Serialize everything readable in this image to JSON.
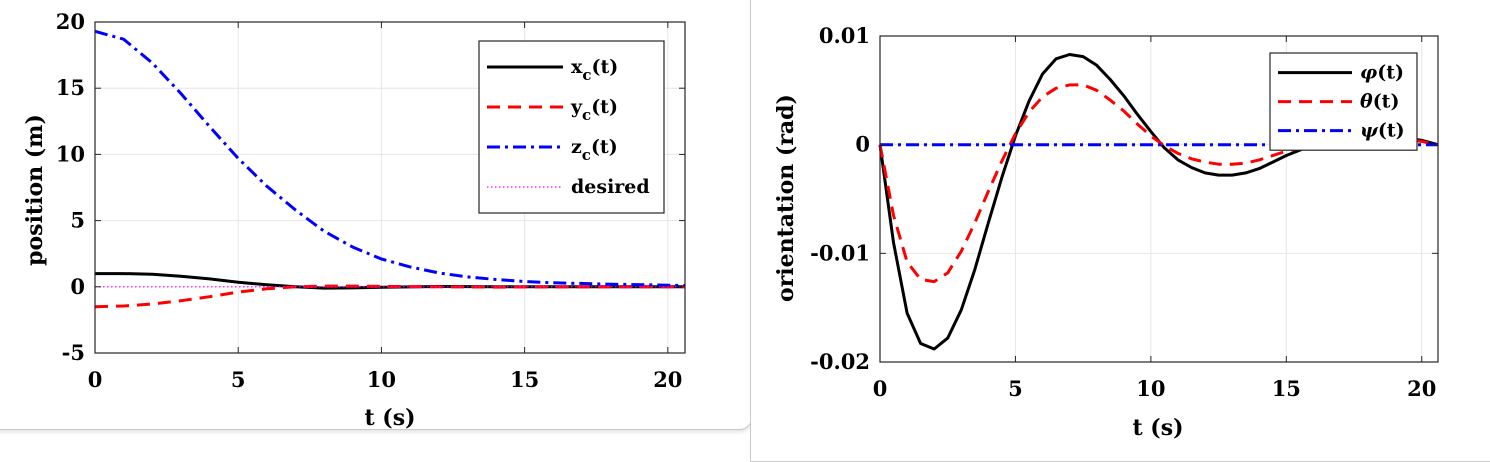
{
  "colors": {
    "black": "#000000",
    "red": "#ff0000",
    "blue": "#0000ff",
    "magenta": "#ff00ff",
    "grid": "#e6e6e6"
  },
  "chart_data": [
    {
      "type": "line",
      "xlabel": "t (s)",
      "ylabel": "position (m)",
      "xlim": [
        0,
        20.6
      ],
      "ylim": [
        -5,
        20
      ],
      "xticks": [
        0,
        5,
        10,
        15,
        20
      ],
      "xtick_labels": [
        "0",
        "5",
        "10",
        "15",
        "20"
      ],
      "yticks": [
        -5,
        0,
        5,
        10,
        15,
        20
      ],
      "ytick_labels": [
        "-5",
        "0",
        "5",
        "10",
        "15",
        "20"
      ],
      "grid": true,
      "legend_position": "top-right",
      "legend": [
        {
          "base": "x",
          "sub": "c",
          "suffix": "(t)",
          "color": "#000000",
          "style": "solid"
        },
        {
          "base": "y",
          "sub": "c",
          "suffix": "(t)",
          "color": "#ff0000",
          "style": "dashed"
        },
        {
          "base": "z",
          "sub": "c",
          "suffix": "(t)",
          "color": "#0000ff",
          "style": "dashdot"
        },
        {
          "base": "desired",
          "sub": "",
          "suffix": "",
          "color": "#ff00ff",
          "style": "dotted"
        }
      ],
      "series": [
        {
          "name": "x_c(t)",
          "color": "#000000",
          "style": "solid",
          "x": [
            0,
            1,
            2,
            3,
            4,
            5,
            6,
            7,
            8,
            9,
            10,
            12,
            14,
            16,
            18,
            20,
            20.6
          ],
          "y": [
            1.0,
            1.0,
            0.95,
            0.8,
            0.6,
            0.35,
            0.15,
            0.0,
            -0.1,
            -0.08,
            -0.03,
            0.02,
            0.01,
            0.0,
            0.0,
            0.0,
            0.0
          ]
        },
        {
          "name": "y_c(t)",
          "color": "#ff0000",
          "style": "dashed",
          "x": [
            0,
            1,
            2,
            3,
            4,
            5,
            6,
            7,
            8,
            9,
            10,
            12,
            14,
            16,
            18,
            20,
            20.6
          ],
          "y": [
            -1.5,
            -1.45,
            -1.3,
            -1.05,
            -0.75,
            -0.4,
            -0.15,
            0.0,
            0.05,
            0.05,
            0.03,
            0.0,
            -0.02,
            -0.01,
            0.0,
            0.0,
            0.0
          ]
        },
        {
          "name": "z_c(t)",
          "color": "#0000ff",
          "style": "dashdot",
          "x": [
            0,
            1,
            2,
            3,
            4,
            5,
            6,
            7,
            8,
            9,
            10,
            11,
            12,
            13,
            14,
            15,
            16,
            18,
            20,
            20.6
          ],
          "y": [
            19.3,
            18.7,
            16.9,
            14.6,
            12.1,
            9.7,
            7.6,
            5.8,
            4.2,
            3.0,
            2.1,
            1.5,
            1.05,
            0.75,
            0.55,
            0.4,
            0.3,
            0.2,
            0.12,
            0.1
          ]
        },
        {
          "name": "desired",
          "color": "#ff00ff",
          "style": "dotted",
          "x": [
            0,
            20.6
          ],
          "y": [
            0,
            0
          ]
        }
      ]
    },
    {
      "type": "line",
      "xlabel": "t (s)",
      "ylabel": "orientation (rad)",
      "xlim": [
        0,
        20.6
      ],
      "ylim": [
        -0.02,
        0.01
      ],
      "xticks": [
        0,
        5,
        10,
        15,
        20
      ],
      "xtick_labels": [
        "0",
        "5",
        "10",
        "15",
        "20"
      ],
      "yticks": [
        -0.02,
        -0.01,
        0,
        0.01
      ],
      "ytick_labels": [
        "-0.02",
        "-0.01",
        "0",
        "0.01"
      ],
      "grid": true,
      "legend_position": "top-right",
      "legend": [
        {
          "base": "φ",
          "sub": "",
          "suffix": "(t)",
          "color": "#000000",
          "style": "solid"
        },
        {
          "base": "θ",
          "sub": "",
          "suffix": "(t)",
          "color": "#ff0000",
          "style": "dashed"
        },
        {
          "base": "ψ",
          "sub": "",
          "suffix": "(t)",
          "color": "#0000ff",
          "style": "dashdot"
        }
      ],
      "series": [
        {
          "name": "φ(t)",
          "color": "#000000",
          "style": "solid",
          "x": [
            0,
            0.5,
            1,
            1.5,
            2,
            2.5,
            3,
            3.5,
            4,
            4.5,
            5,
            5.5,
            6,
            6.5,
            7,
            7.5,
            8,
            8.5,
            9,
            9.5,
            10,
            10.5,
            11,
            11.5,
            12,
            12.5,
            13,
            13.5,
            14,
            14.5,
            15,
            15.5,
            16,
            17,
            18,
            19,
            20,
            20.6
          ],
          "y": [
            0,
            -0.009,
            -0.0155,
            -0.0183,
            -0.0188,
            -0.0178,
            -0.0152,
            -0.0115,
            -0.0072,
            -0.003,
            0.0008,
            0.004,
            0.0065,
            0.0079,
            0.0083,
            0.0081,
            0.0073,
            0.006,
            0.0045,
            0.0028,
            0.0012,
            -0.0003,
            -0.0014,
            -0.0021,
            -0.0026,
            -0.0028,
            -0.0028,
            -0.0026,
            -0.0022,
            -0.0016,
            -0.001,
            -0.0005,
            0.0,
            0.0006,
            0.0009,
            0.0008,
            0.0004,
            0.0
          ]
        },
        {
          "name": "θ(t)",
          "color": "#ff0000",
          "style": "dashed",
          "x": [
            0,
            0.5,
            1,
            1.5,
            2,
            2.5,
            3,
            3.5,
            4,
            4.5,
            5,
            5.5,
            6,
            6.5,
            7,
            7.5,
            8,
            8.5,
            9,
            9.5,
            10,
            10.5,
            11,
            11.5,
            12,
            12.5,
            13,
            13.5,
            14,
            14.5,
            15,
            15.5,
            16,
            17,
            18,
            19,
            20,
            20.6
          ],
          "y": [
            0,
            -0.0065,
            -0.0108,
            -0.0124,
            -0.0126,
            -0.0118,
            -0.0098,
            -0.0072,
            -0.0043,
            -0.0015,
            0.001,
            0.003,
            0.0044,
            0.0052,
            0.0055,
            0.0055,
            0.005,
            0.0041,
            0.0031,
            0.0019,
            0.0008,
            -0.0001,
            -0.0008,
            -0.0013,
            -0.0016,
            -0.0018,
            -0.0018,
            -0.0017,
            -0.0014,
            -0.001,
            -0.0006,
            -0.0003,
            0.0,
            0.0004,
            0.0006,
            0.0006,
            0.0003,
            0.0
          ]
        },
        {
          "name": "ψ(t)",
          "color": "#0000ff",
          "style": "dashdot",
          "x": [
            0,
            20.6
          ],
          "y": [
            0,
            0
          ]
        }
      ]
    }
  ]
}
